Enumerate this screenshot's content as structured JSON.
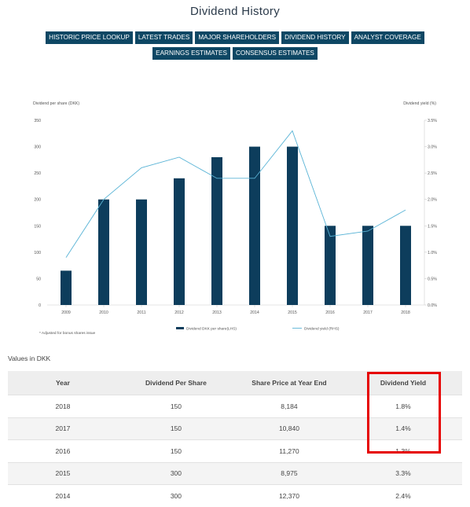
{
  "page_title": "Dividend History",
  "nav": [
    "HISTORIC PRICE LOOKUP",
    "LATEST TRADES",
    "MAJOR SHAREHOLDERS",
    "DIVIDEND HISTORY",
    "ANALYST COVERAGE",
    "EARNINGS ESTIMATES",
    "CONSENSUS ESTIMATES"
  ],
  "chart_data": {
    "type": "bar",
    "categories": [
      "2009",
      "2010",
      "2011",
      "2012",
      "2013",
      "2014",
      "2015",
      "2016",
      "2017",
      "2018"
    ],
    "series": [
      {
        "name": "Dividend DKK per share(LHS)",
        "type": "bar",
        "axis": "left",
        "values": [
          65,
          200,
          200,
          240,
          280,
          300,
          300,
          150,
          150,
          150
        ]
      },
      {
        "name": "Dividend yield (RHS)",
        "type": "line",
        "axis": "right",
        "values": [
          0.9,
          2.0,
          2.6,
          2.8,
          2.4,
          2.4,
          3.3,
          1.3,
          1.4,
          1.8
        ]
      }
    ],
    "ylabel": "Dividend per share (DKK)",
    "y2label": "Dividend yield (%)",
    "ylim": [
      0,
      350
    ],
    "y2lim": [
      0,
      3.5
    ],
    "yticks": [
      "0",
      "50",
      "100",
      "150",
      "200",
      "250",
      "300",
      "350"
    ],
    "y2ticks": [
      "0.0%",
      "0.5%",
      "1.0%",
      "1.5%",
      "2.0%",
      "2.5%",
      "3.0%",
      "3.5%"
    ],
    "footnote": "* Adjusted for bonus shares issue",
    "legend_position": "bottom",
    "colors": {
      "bar": "#0d3d5c",
      "line": "#5ab4d6"
    }
  },
  "values_label": "Values in DKK",
  "table": {
    "headers": [
      "Year",
      "Dividend Per Share",
      "Share Price at Year End",
      "Dividend Yield"
    ],
    "rows": [
      [
        "2018",
        "150",
        "8,184",
        "1.8%"
      ],
      [
        "2017",
        "150",
        "10,840",
        "1.4%"
      ],
      [
        "2016",
        "150",
        "11,270",
        "1.3%"
      ],
      [
        "2015",
        "300",
        "8,975",
        "3.3%"
      ],
      [
        "2014",
        "300",
        "12,370",
        "2.4%"
      ]
    ]
  }
}
